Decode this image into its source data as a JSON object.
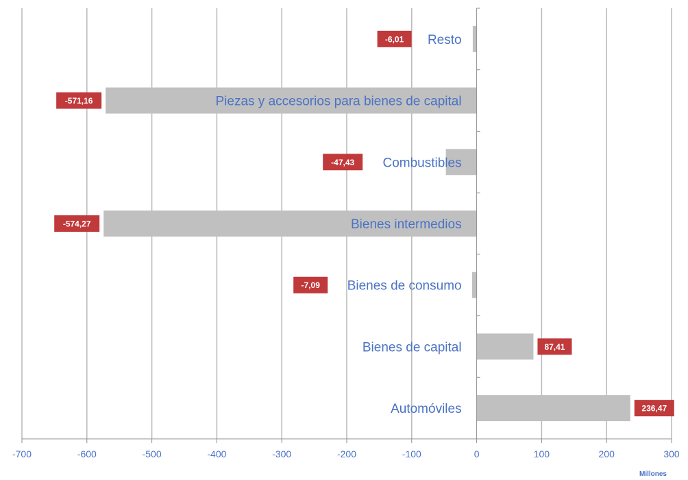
{
  "chart_data": {
    "type": "bar",
    "orientation": "horizontal",
    "categories": [
      "Resto",
      "Piezas y accesorios para bienes de capital",
      "Combustibles",
      "Bienes intermedios",
      "Bienes de consumo",
      "Bienes de capital",
      "Automóviles"
    ],
    "values": [
      -6.01,
      -571.16,
      -47.43,
      -574.27,
      -7.09,
      87.41,
      236.47
    ],
    "value_labels": [
      "-6,01",
      "-571,16",
      "-47,43",
      "-574,27",
      "-7,09",
      "87,41",
      "236,47"
    ],
    "xlim": [
      -700,
      300
    ],
    "x_ticks": [
      -700,
      -600,
      -500,
      -400,
      -300,
      -200,
      -100,
      0,
      100,
      200,
      300
    ],
    "x_tick_labels": [
      "-700",
      "-600",
      "-500",
      "-400",
      "-300",
      "-200",
      "-100",
      "0",
      "100",
      "200",
      "300"
    ],
    "unit_label": "Millones",
    "grid": true,
    "colors": {
      "bar": "#c0c0c0",
      "grid": "#b8b8b8",
      "axis": "#8f8f8f",
      "text": "#4a72c4",
      "value_label_bg": "#c0393b",
      "value_label_text": "#ffffff"
    }
  }
}
